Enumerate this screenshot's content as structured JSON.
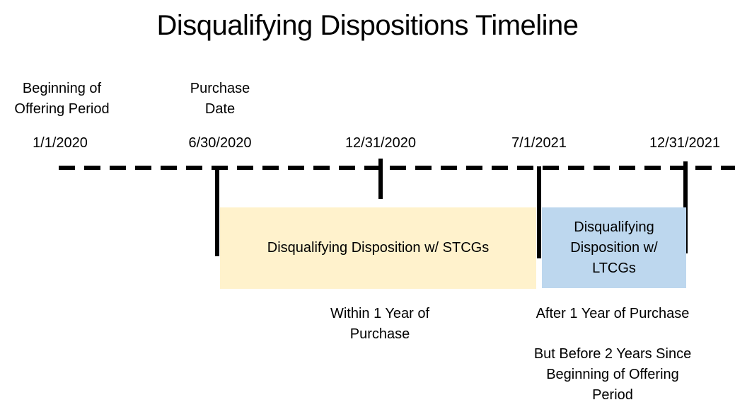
{
  "title": "Disqualifying Dispositions Timeline",
  "colors": {
    "stcg_fill": "#FFF2CC",
    "ltcg_fill": "#BDD7EE",
    "axis": "#000000"
  },
  "milestones": [
    {
      "label": "Beginning of\nOffering Period",
      "date": "1/1/2020"
    },
    {
      "label": "Purchase\nDate",
      "date": "6/30/2020"
    },
    {
      "label": "",
      "date": "12/31/2020"
    },
    {
      "label": "",
      "date": "7/1/2021"
    },
    {
      "label": "",
      "date": "12/31/2021"
    }
  ],
  "spans": [
    {
      "label": "Disqualifying Disposition w/ STCGs"
    },
    {
      "label": "Disqualifying\nDisposition w/\nLTCGs"
    }
  ],
  "annotations": [
    {
      "text": "Within 1 Year of\nPurchase"
    },
    {
      "text": "After 1 Year of Purchase"
    },
    {
      "text": "But Before 2 Years Since\nBeginning of Offering\nPeriod"
    }
  ]
}
